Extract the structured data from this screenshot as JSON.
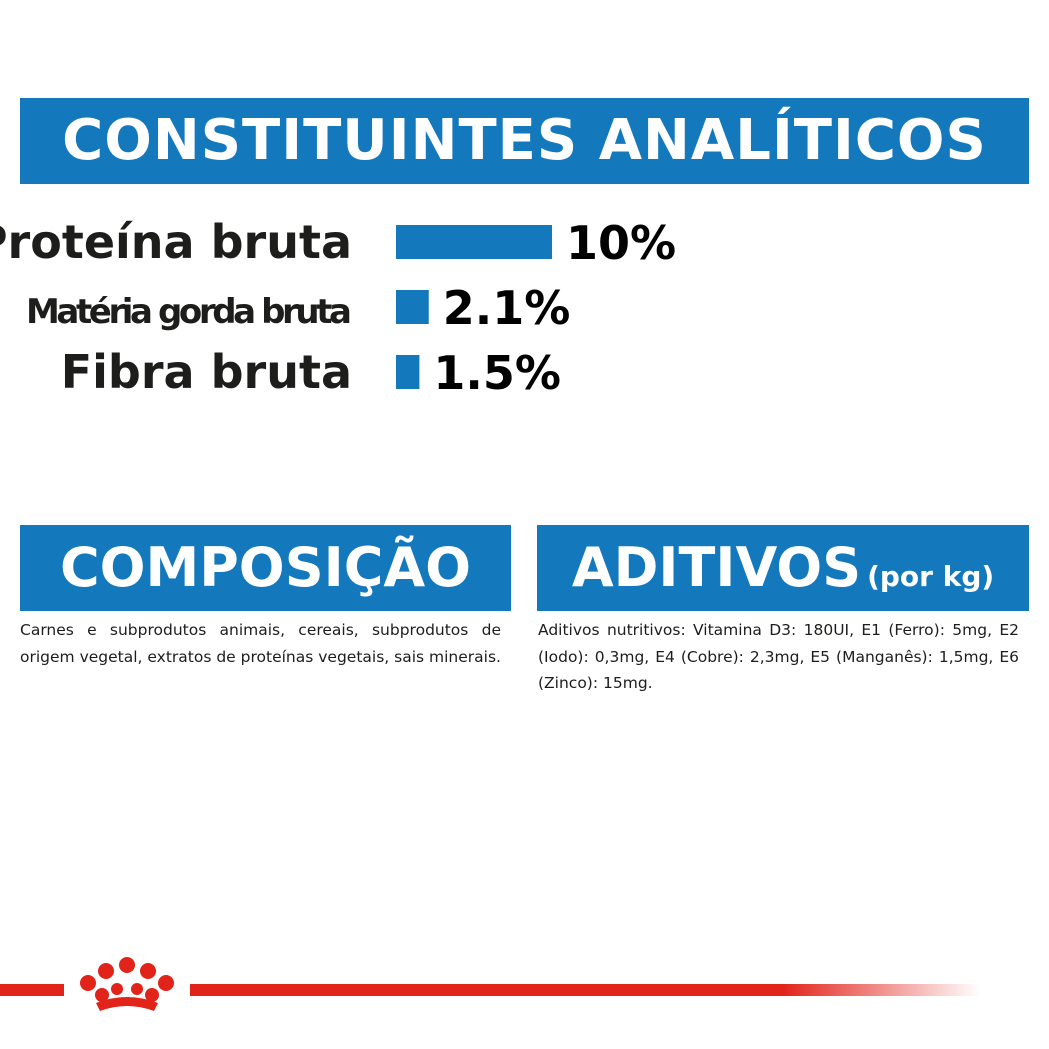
{
  "header": {
    "title": "CONSTITUINTES ANALÍTICOS"
  },
  "colors": {
    "brand_blue": "#1479bc",
    "brand_red": "#e2231a",
    "text": "#1d1d1b"
  },
  "chart_data": {
    "type": "bar",
    "categories": [
      "Proteína bruta",
      "Matéria gorda bruta",
      "Fibra bruta"
    ],
    "values": [
      10,
      2.1,
      1.5
    ],
    "value_labels": [
      "10%",
      "2.1%",
      "1.5%"
    ],
    "orientation": "horizontal",
    "title": "CONSTITUINTES ANALÍTICOS",
    "xlabel": "",
    "ylabel": "",
    "grid": false
  },
  "composition": {
    "title": "COMPOSIÇÃO",
    "text": "Carnes e subprodutos animais, cereais, subprodutos de origem vegetal, extratos de proteínas vegetais, sais minerais."
  },
  "additives": {
    "title": "ADITIVOS",
    "subtitle": "(por kg)",
    "text": "Aditivos nutritivos: Vitamina D3: 180UI, E1 (Ferro): 5mg, E2 (Iodo): 0,3mg, E4 (Cobre): 2,3mg, E5 (Manganês): 1,5mg, E6 (Zinco): 15mg."
  },
  "logo": {
    "icon": "royal-canin-crown-icon"
  }
}
